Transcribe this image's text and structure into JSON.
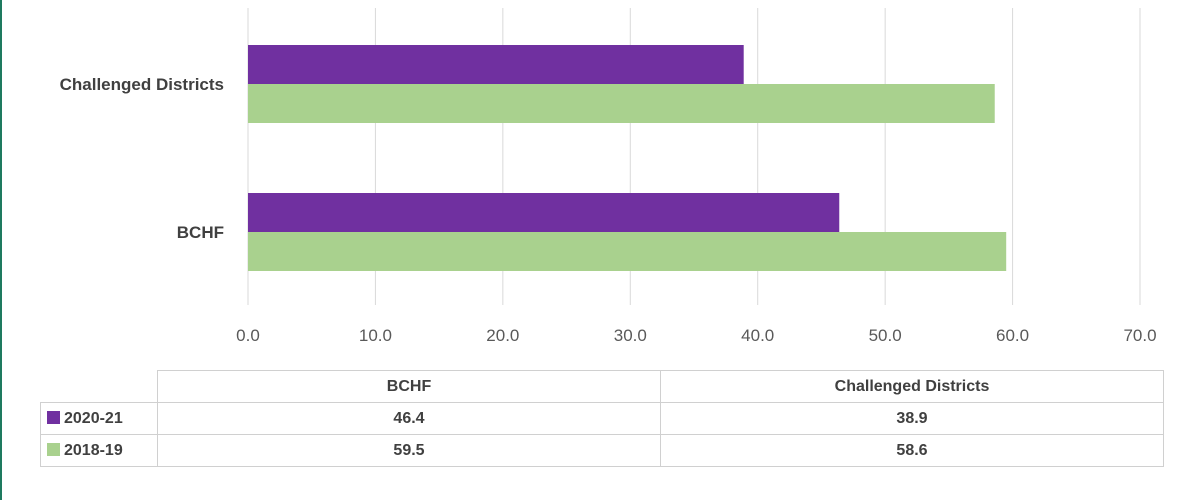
{
  "colors": {
    "series_2020_21": "#7030a0",
    "series_2018_19": "#a9d18e",
    "gridline": "#d9d9d9",
    "frame_border": "#1e7a5f"
  },
  "chart_data": {
    "type": "bar",
    "orientation": "horizontal",
    "categories": [
      "Challenged Districts",
      "BCHF"
    ],
    "series": [
      {
        "name": "2020-21",
        "values": [
          38.9,
          46.4
        ]
      },
      {
        "name": "2018-19",
        "values": [
          58.6,
          59.5
        ]
      }
    ],
    "xlim": [
      0,
      70
    ],
    "xticks": [
      "0.0",
      "10.0",
      "20.0",
      "30.0",
      "40.0",
      "50.0",
      "60.0",
      "70.0"
    ],
    "grid": true,
    "legend": "data-table"
  },
  "table": {
    "columns": [
      "BCHF",
      "Challenged Districts"
    ],
    "rows": [
      {
        "label": "2020-21",
        "values": [
          "46.4",
          "38.9"
        ]
      },
      {
        "label": "2018-19",
        "values": [
          "59.5",
          "58.6"
        ]
      }
    ]
  }
}
